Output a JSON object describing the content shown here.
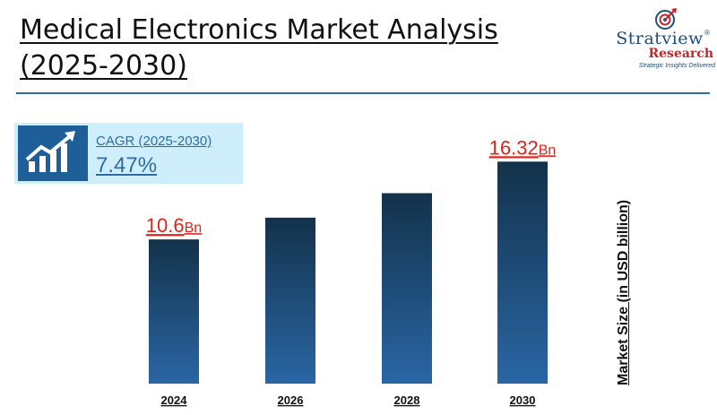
{
  "header": {
    "title": "Medical Electronics Market Analysis (2025-2030)"
  },
  "logo": {
    "name": "Stratview",
    "registered": "®",
    "sub": "Research",
    "tagline": "Strategic Insights Delivered"
  },
  "cagr": {
    "label": "CAGR (2025-2030)",
    "value": "7.47%"
  },
  "colors": {
    "bar_top": "#13324a",
    "bar_bottom": "#2a66a5",
    "value_label": "#e2231a",
    "accent": "#2e6da4"
  },
  "chart_data": {
    "type": "bar",
    "categories": [
      "2024",
      "2026",
      "2028",
      "2030"
    ],
    "values": [
      10.6,
      12.2,
      14.0,
      16.32
    ],
    "data_labels": [
      {
        "index": 0,
        "number": "10.6",
        "unit": "Bn"
      },
      {
        "index": 3,
        "number": "16.32",
        "unit": "Bn"
      }
    ],
    "xlabel": "",
    "ylabel": "Market Size (in USD billion)",
    "ylim": [
      0,
      17
    ],
    "grid": false,
    "legend": "none"
  }
}
